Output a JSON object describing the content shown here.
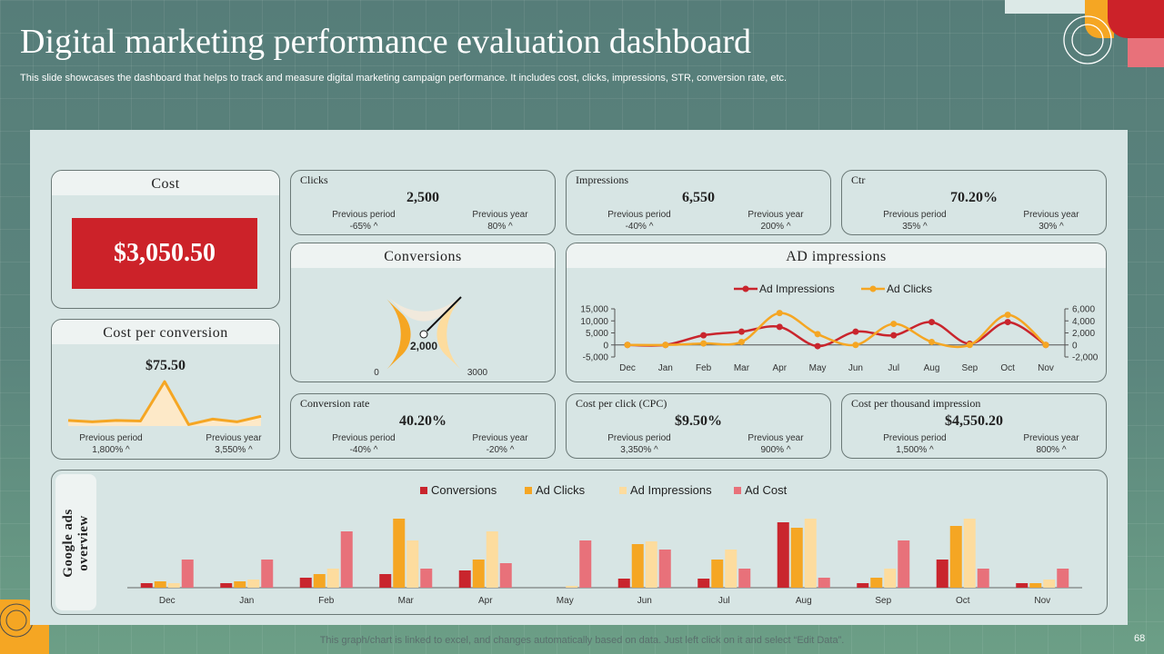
{
  "header": {
    "title": "Digital marketing performance evaluation dashboard",
    "subtitle": "This slide showcases the dashboard that helps to track and measure digital marketing campaign performance. It includes cost, clicks, impressions, STR, conversion rate, etc."
  },
  "cost": {
    "title": "Cost",
    "value": "$3,050.50"
  },
  "kpis": {
    "clicks": {
      "label": "Clicks",
      "value": "2,500",
      "prev_period_label": "Previous period",
      "prev_period": "-65% ^",
      "prev_year_label": "Previous year",
      "prev_year": "80% ^"
    },
    "impressions": {
      "label": "Impressions",
      "value": "6,550",
      "prev_period_label": "Previous period",
      "prev_period": "-40% ^",
      "prev_year_label": "Previous year",
      "prev_year": "200% ^"
    },
    "ctr": {
      "label": "Ctr",
      "value": "70.20%",
      "prev_period_label": "Previous period",
      "prev_period": "35% ^",
      "prev_year_label": "Previous year",
      "prev_year": "30% ^"
    },
    "conversion_rate": {
      "label": "Conversion rate",
      "value": "40.20%",
      "prev_period_label": "Previous period",
      "prev_period": "-40% ^",
      "prev_year_label": "Previous year",
      "prev_year": "-20% ^"
    },
    "cpc": {
      "label": "Cost per click (CPC)",
      "value": "$9.50%",
      "prev_period_label": "Previous period",
      "prev_period": "3,350% ^",
      "prev_year_label": "Previous year",
      "prev_year": "900% ^"
    },
    "cpm": {
      "label": "Cost per thousand impression",
      "value": "$4,550.20",
      "prev_period_label": "Previous period",
      "prev_period": "1,500% ^",
      "prev_year_label": "Previous year",
      "prev_year": "800% ^"
    }
  },
  "cost_per_conversion": {
    "title": "Cost per conversion",
    "value": "$75.50",
    "prev_period_label": "Previous period",
    "prev_period": "1,800% ^",
    "prev_year_label": "Previous year",
    "prev_year": "3,550% ^"
  },
  "conversions": {
    "title": "Conversions"
  },
  "ad_impressions": {
    "title": "AD impressions"
  },
  "google_ads": {
    "title": "Google ads overview"
  },
  "footer": {
    "note": "This graph/chart is linked to excel,  and changes automatically based on data. Just left click on it and select “Edit Data”.",
    "page": "68"
  },
  "colors": {
    "red": "#c9252d",
    "orange": "#f5a623",
    "cream": "#fddc9e",
    "pink": "#e8717a",
    "accent_red": "#cc2229"
  },
  "chart_data": [
    {
      "type": "gauge",
      "title": "Conversions",
      "value": 2000,
      "value_label": "2,000",
      "min": 0,
      "max": 3000,
      "min_label": "0",
      "max_label": "3000"
    },
    {
      "type": "area",
      "title": "Cost per conversion",
      "values": [
        2,
        1.5,
        2,
        1.8,
        16,
        0.5,
        2.5,
        1.5,
        3.5
      ],
      "ylim": [
        0,
        18
      ]
    },
    {
      "type": "line",
      "title": "AD impressions",
      "categories": [
        "Dec",
        "Jan",
        "Feb",
        "Mar",
        "Apr",
        "May",
        "Jun",
        "Jul",
        "Aug",
        "Sep",
        "Oct",
        "Nov"
      ],
      "series": [
        {
          "name": "Ad Impressions",
          "axis": "left",
          "values": [
            0,
            0,
            4000,
            5500,
            7500,
            -500,
            5500,
            4000,
            9500,
            500,
            9500,
            0
          ]
        },
        {
          "name": "Ad Clicks",
          "axis": "right",
          "values": [
            0,
            0,
            250,
            500,
            5300,
            1800,
            0,
            3500,
            500,
            0,
            5000,
            0
          ]
        }
      ],
      "left_axis": {
        "ylim": [
          -5000,
          15000
        ],
        "ticks": [
          "-5,000",
          "0",
          "5,000",
          "10,000",
          "15,000"
        ]
      },
      "right_axis": {
        "ylim": [
          -2000,
          6000
        ],
        "ticks": [
          "-2,000",
          "0",
          "2,000",
          "4,000",
          "6,000"
        ]
      },
      "legend": "top-center"
    },
    {
      "type": "bar",
      "title": "Google ads overview",
      "categories": [
        "Dec",
        "Jan",
        "Feb",
        "Mar",
        "Apr",
        "May",
        "Jun",
        "Jul",
        "Aug",
        "Sep",
        "Oct",
        "Nov"
      ],
      "series": [
        {
          "name": "Conversions",
          "values": [
            5,
            5,
            11,
            15,
            19,
            0,
            10,
            10,
            72,
            5,
            31,
            5
          ]
        },
        {
          "name": "Ad Clicks",
          "values": [
            7,
            7,
            15,
            76,
            31,
            0,
            48,
            31,
            66,
            11,
            68,
            5
          ]
        },
        {
          "name": "Ad Impressions",
          "values": [
            5,
            9,
            21,
            52,
            62,
            2,
            51,
            42,
            76,
            21,
            76,
            9
          ]
        },
        {
          "name": "Ad Cost",
          "values": [
            31,
            31,
            62,
            21,
            27,
            52,
            42,
            21,
            11,
            52,
            21,
            21
          ]
        }
      ],
      "ylim": [
        0,
        80
      ],
      "legend": "top-center"
    }
  ]
}
